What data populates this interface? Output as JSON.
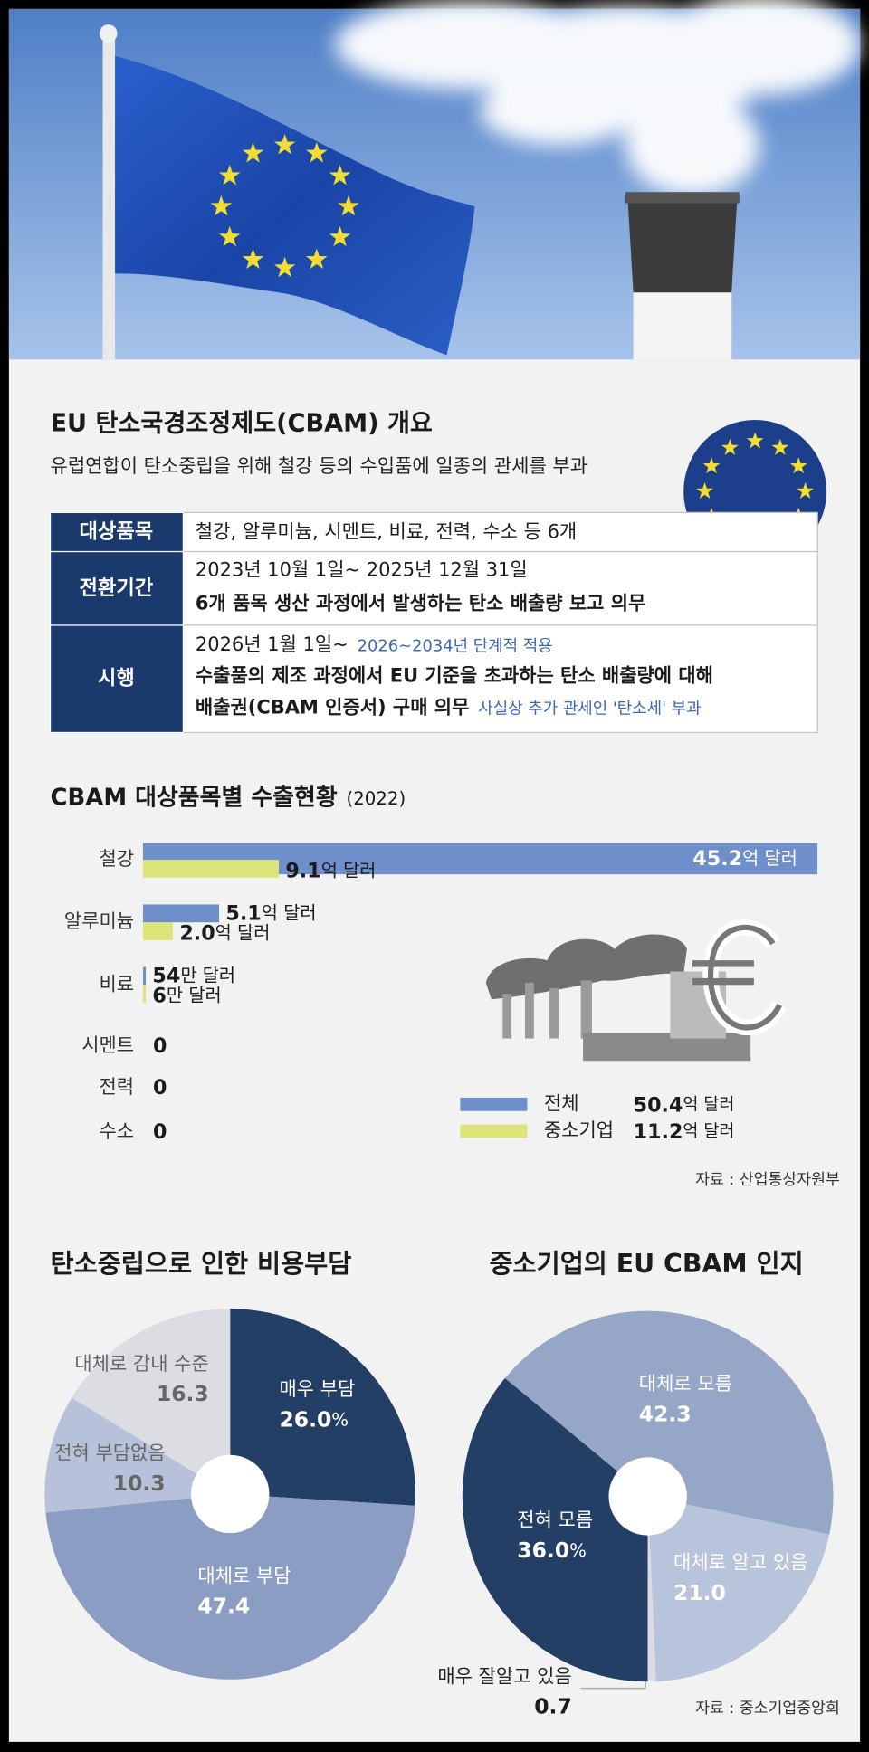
{
  "header": {
    "title": "EU 탄소국경조정제도(CBAM) 개요",
    "subtitle": "유럽연합이 탄소중립을 위해 철강 등의 수입품에 일종의 관세를 부과"
  },
  "table": {
    "rows": [
      {
        "label": "대상품목",
        "lines": [
          {
            "text": "철강, 알루미늄, 시멘트, 비료, 전력, 수소 등 6개"
          }
        ]
      },
      {
        "label": "전환기간",
        "lines": [
          {
            "text": "2023년 10월 1일~ 2025년 12월 31일"
          },
          {
            "text": "6개 품목 생산 과정에서 발생하는 탄소 배출량 보고 의무"
          }
        ]
      },
      {
        "label": "시행",
        "lines": [
          {
            "text": "2026년 1월 1일~",
            "note": "2026~2034년 단계적 적용"
          },
          {
            "text": "수출품의 제조 과정에서 EU 기준을 초과하는 탄소 배출량에 대해"
          },
          {
            "text": "배출권(CBAM 인증서) 구매 의무",
            "note": "사실상 추가 관세인 '탄소세' 부과"
          }
        ]
      }
    ]
  },
  "chart_data": [
    {
      "type": "bar",
      "orientation": "horizontal",
      "title": "CBAM 대상품목별 수출현황",
      "period": "(2022)",
      "categories": [
        "철강",
        "알루미늄",
        "비료",
        "시멘트",
        "전력",
        "수소"
      ],
      "series": [
        {
          "name": "전체",
          "color": "#6f8fcb",
          "values": [
            45.2,
            5.1,
            0.0054,
            0,
            0,
            0
          ],
          "value_labels": [
            "45.2억 달러",
            "5.1억 달러",
            "54만 달러",
            "0",
            "0",
            "0"
          ],
          "total_label": "50.4억 달러"
        },
        {
          "name": "중소기업",
          "color": "#dde57a",
          "values": [
            9.1,
            2.0,
            0.0006,
            0,
            0,
            0
          ],
          "value_labels": [
            "9.1억 달러",
            "2.0억 달러",
            "6만 달러",
            null,
            null,
            null
          ],
          "total_label": "11.2억 달러"
        }
      ],
      "source": "자료 : 산업통상자원부"
    },
    {
      "type": "pie",
      "title": "탄소중립으로 인한 비용부담",
      "labels": [
        "매우 부담",
        "대체로 부담",
        "전혀 부담없음",
        "대체로 감내 수준"
      ],
      "values": [
        26.0,
        47.4,
        10.3,
        16.3
      ],
      "value_labels": [
        "26.0%",
        "47.4",
        "10.3",
        "16.3"
      ],
      "colors": [
        "#243f66",
        "#8b9dc3",
        "#b7c2da",
        "#dcdde2"
      ]
    },
    {
      "type": "pie",
      "title": "중소기업의 EU CBAM 인지",
      "labels": [
        "전혀 모름",
        "대체로 모름",
        "대체로 알고 있음",
        "매우 잘알고 있음"
      ],
      "values": [
        36.0,
        42.3,
        21.0,
        0.7
      ],
      "value_labels": [
        "36.0%",
        "42.3",
        "21.0",
        "0.7"
      ],
      "colors": [
        "#243f66",
        "#95a6c7",
        "#b8c3dc",
        "#dcdde2"
      ],
      "source": "자료 : 중소기업중앙회"
    }
  ]
}
